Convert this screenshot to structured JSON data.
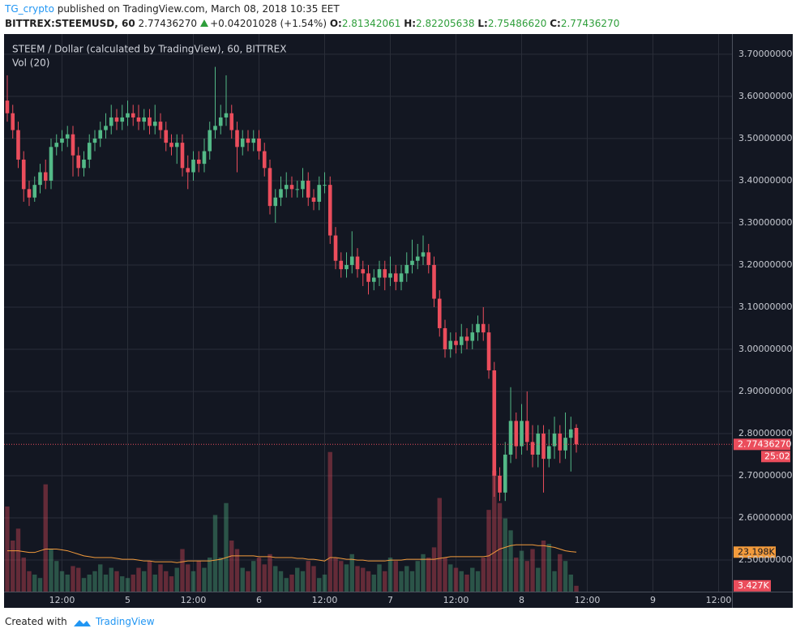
{
  "header": {
    "author": "TG_crypto",
    "published": "published on TradingView.com, March 08, 2018 10:35 EET",
    "symbol": "BITTREX:STEEMUSD, 60",
    "last": "2.77436270",
    "change": "+0.04201028 (+1.54%)",
    "o_label": "O:",
    "o": "2.81342061",
    "h_label": "H:",
    "h": "2.82205638",
    "l_label": "L:",
    "l": "2.75486620",
    "c_label": "C:",
    "c": "2.77436270"
  },
  "footer": {
    "created": "Created with",
    "brand": "TradingView"
  },
  "chart_data": {
    "type": "candlestick",
    "title": "STEEM / Dollar (calculated by TradingView), 60, BITTREX",
    "up_color": "#53b987",
    "down_color": "#eb4d5c",
    "grid": true,
    "open": [
      3.59,
      3.56,
      3.52,
      3.45,
      3.38,
      3.36,
      3.39,
      3.42,
      3.4,
      3.48,
      3.49,
      3.5,
      3.51,
      3.46,
      3.43,
      3.45,
      3.49,
      3.5,
      3.52,
      3.53,
      3.55,
      3.54,
      3.55,
      3.56,
      3.55,
      3.54,
      3.55,
      3.53,
      3.54,
      3.52,
      3.49,
      3.48,
      3.49,
      3.43,
      3.42,
      3.45,
      3.44,
      3.47,
      3.52,
      3.53,
      3.55,
      3.56,
      3.52,
      3.48,
      3.5,
      3.49,
      3.5,
      3.47,
      3.43,
      3.34,
      3.36,
      3.38,
      3.39,
      3.38,
      3.38,
      3.4,
      3.36,
      3.35,
      3.39,
      3.39,
      3.27,
      3.21,
      3.19,
      3.2,
      3.22,
      3.19,
      3.18,
      3.16,
      3.17,
      3.19,
      3.17,
      3.18,
      3.16,
      3.18,
      3.2,
      3.21,
      3.22,
      3.23,
      3.2,
      3.12,
      3.05,
      3.0,
      3.02,
      3.01,
      3.03,
      3.02,
      3.04,
      3.06,
      3.04,
      2.95,
      2.7,
      2.66,
      2.75,
      2.83,
      2.77,
      2.83,
      2.78,
      2.75,
      2.8,
      2.74,
      2.77,
      2.8,
      2.76,
      2.79,
      2.81342061
    ],
    "high": [
      3.65,
      3.58,
      3.54,
      3.47,
      3.4,
      3.41,
      3.44,
      3.45,
      3.5,
      3.51,
      3.52,
      3.53,
      3.53,
      3.48,
      3.47,
      3.51,
      3.52,
      3.54,
      3.56,
      3.58,
      3.57,
      3.58,
      3.59,
      3.58,
      3.58,
      3.57,
      3.57,
      3.58,
      3.56,
      3.54,
      3.51,
      3.51,
      3.51,
      3.46,
      3.47,
      3.47,
      3.5,
      3.54,
      3.67,
      3.58,
      3.65,
      3.58,
      3.54,
      3.52,
      3.52,
      3.52,
      3.52,
      3.49,
      3.45,
      3.38,
      3.41,
      3.42,
      3.41,
      3.4,
      3.43,
      3.42,
      3.38,
      3.41,
      3.42,
      3.41,
      3.29,
      3.23,
      3.23,
      3.28,
      3.24,
      3.21,
      3.2,
      3.19,
      3.21,
      3.21,
      3.22,
      3.2,
      3.2,
      3.23,
      3.26,
      3.25,
      3.27,
      3.25,
      3.22,
      3.14,
      3.07,
      3.04,
      3.04,
      3.06,
      3.05,
      3.06,
      3.08,
      3.1,
      3.06,
      2.97,
      2.72,
      2.78,
      2.91,
      2.85,
      2.87,
      2.9,
      2.82,
      2.82,
      2.82,
      2.81,
      2.84,
      2.82,
      2.85,
      2.84,
      2.82205638
    ],
    "low": [
      3.54,
      3.5,
      3.43,
      3.35,
      3.34,
      3.35,
      3.37,
      3.38,
      3.38,
      3.46,
      3.47,
      3.48,
      3.41,
      3.41,
      3.41,
      3.43,
      3.47,
      3.48,
      3.5,
      3.51,
      3.52,
      3.52,
      3.53,
      3.53,
      3.52,
      3.52,
      3.51,
      3.51,
      3.5,
      3.47,
      3.46,
      3.44,
      3.41,
      3.38,
      3.4,
      3.42,
      3.42,
      3.45,
      3.5,
      3.51,
      3.53,
      3.5,
      3.42,
      3.46,
      3.47,
      3.47,
      3.45,
      3.41,
      3.32,
      3.3,
      3.34,
      3.36,
      3.36,
      3.36,
      3.36,
      3.34,
      3.33,
      3.33,
      3.37,
      3.25,
      3.19,
      3.17,
      3.17,
      3.18,
      3.17,
      3.15,
      3.13,
      3.14,
      3.15,
      3.14,
      3.15,
      3.14,
      3.14,
      3.16,
      3.18,
      3.19,
      3.2,
      3.18,
      3.1,
      3.03,
      2.98,
      2.98,
      2.99,
      2.99,
      3.0,
      3.0,
      3.02,
      3.02,
      2.93,
      2.65,
      2.64,
      2.64,
      2.73,
      2.74,
      2.75,
      2.76,
      2.72,
      2.72,
      2.66,
      2.72,
      2.74,
      2.73,
      2.74,
      2.71,
      2.7548662
    ],
    "close": [
      3.56,
      3.52,
      3.45,
      3.38,
      3.36,
      3.39,
      3.42,
      3.4,
      3.48,
      3.49,
      3.5,
      3.51,
      3.46,
      3.43,
      3.45,
      3.49,
      3.5,
      3.52,
      3.53,
      3.55,
      3.54,
      3.55,
      3.56,
      3.55,
      3.54,
      3.55,
      3.53,
      3.54,
      3.52,
      3.49,
      3.48,
      3.49,
      3.43,
      3.42,
      3.45,
      3.44,
      3.47,
      3.52,
      3.53,
      3.55,
      3.56,
      3.52,
      3.48,
      3.5,
      3.49,
      3.5,
      3.47,
      3.43,
      3.34,
      3.36,
      3.38,
      3.39,
      3.38,
      3.38,
      3.4,
      3.36,
      3.35,
      3.39,
      3.39,
      3.27,
      3.21,
      3.19,
      3.2,
      3.22,
      3.19,
      3.18,
      3.16,
      3.17,
      3.19,
      3.17,
      3.18,
      3.16,
      3.18,
      3.2,
      3.21,
      3.22,
      3.23,
      3.2,
      3.12,
      3.05,
      3.0,
      3.02,
      3.01,
      3.03,
      3.02,
      3.04,
      3.06,
      3.04,
      2.95,
      2.7,
      2.66,
      2.75,
      2.83,
      2.77,
      2.83,
      2.78,
      2.75,
      2.8,
      2.74,
      2.77,
      2.8,
      2.76,
      2.79,
      2.81,
      2.7743627
    ],
    "last_price_label": "2.77436270",
    "countdown": "25:02",
    "ylim": [
      2.425,
      3.746
    ],
    "yticks": [
      {
        "value": 2.5,
        "label": "2.50000000"
      },
      {
        "value": 2.6,
        "label": "2.60000000"
      },
      {
        "value": 2.7,
        "label": "2.70000000"
      },
      {
        "value": 2.8,
        "label": "2.80000000"
      },
      {
        "value": 2.9,
        "label": "2.90000000"
      },
      {
        "value": 3.0,
        "label": "3.00000000"
      },
      {
        "value": 3.1,
        "label": "3.10000000"
      },
      {
        "value": 3.2,
        "label": "3.20000000"
      },
      {
        "value": 3.3,
        "label": "3.30000000"
      },
      {
        "value": 3.4,
        "label": "3.40000000"
      },
      {
        "value": 3.5,
        "label": "3.50000000"
      },
      {
        "value": 3.6,
        "label": "3.60000000"
      },
      {
        "value": 3.7,
        "label": "3.70000000"
      }
    ],
    "xlim": [
      -0.59,
      132.44
    ],
    "xticks": [
      {
        "value": 10,
        "label": "12:00"
      },
      {
        "value": 22,
        "label": "5"
      },
      {
        "value": 34,
        "label": "12:00"
      },
      {
        "value": 46,
        "label": "6"
      },
      {
        "value": 58,
        "label": "12:00"
      },
      {
        "value": 70,
        "label": "7"
      },
      {
        "value": 82,
        "label": "12:00"
      },
      {
        "value": 94,
        "label": "8"
      },
      {
        "value": 106,
        "label": "12:00"
      },
      {
        "value": 118,
        "label": "9"
      },
      {
        "value": 130,
        "label": "12:00"
      }
    ],
    "volume": {
      "name": "Vol (20)",
      "ylim": [
        0,
        327
      ],
      "ma_color": "#f39b3c",
      "last_label": "3.427K",
      "ma_last_label": "23.198K",
      "values": [
        50,
        30,
        37,
        20,
        12,
        10,
        8,
        63,
        25,
        18,
        12,
        10,
        15,
        14,
        8,
        10,
        12,
        16,
        10,
        14,
        12,
        9,
        8,
        10,
        14,
        12,
        18,
        10,
        16,
        12,
        9,
        14,
        25,
        16,
        12,
        18,
        14,
        20,
        45,
        20,
        52,
        30,
        25,
        14,
        12,
        18,
        20,
        16,
        22,
        15,
        12,
        8,
        10,
        14,
        12,
        18,
        15,
        8,
        10,
        82,
        20,
        18,
        16,
        22,
        15,
        14,
        12,
        10,
        16,
        12,
        20,
        18,
        12,
        15,
        12,
        18,
        22,
        20,
        26,
        55,
        20,
        16,
        14,
        12,
        10,
        14,
        12,
        20,
        48,
        71,
        52,
        43,
        36,
        20,
        24,
        18,
        25,
        14,
        30,
        28,
        12,
        22,
        18,
        10,
        3.427
      ],
      "ma": [
        24,
        24,
        24,
        23.5,
        23,
        23,
        24,
        25,
        25,
        25,
        24.5,
        24,
        23,
        22,
        21,
        20.5,
        20,
        20,
        20,
        20,
        19.5,
        19,
        19,
        19,
        18.5,
        18,
        18,
        17.5,
        17.5,
        17.5,
        17.5,
        17,
        17.5,
        18,
        18,
        18,
        18,
        18,
        18.5,
        19,
        20,
        21,
        21,
        21,
        21,
        21,
        20.5,
        20.5,
        20.5,
        20,
        20,
        20,
        20,
        19.5,
        19.5,
        19,
        19,
        18.5,
        18,
        20,
        20,
        19.5,
        19,
        19,
        18.5,
        18.5,
        18,
        18,
        18,
        18,
        18.5,
        18.5,
        18.5,
        19,
        19,
        19,
        19,
        19,
        19,
        19.5,
        20,
        20.5,
        20.5,
        20.5,
        20.5,
        20.5,
        20.5,
        20.5,
        21,
        23,
        25,
        26,
        27,
        27.5,
        27.5,
        27.5,
        27.5,
        27,
        27,
        26.5,
        26,
        25,
        24,
        23.5,
        23.198
      ]
    }
  }
}
